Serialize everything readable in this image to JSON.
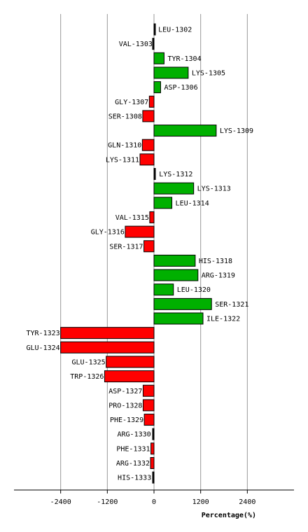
{
  "chart_data": {
    "type": "bar",
    "orientation": "horizontal",
    "xlabel": "Percentage(%)",
    "xlim": [
      -3600,
      3600
    ],
    "xticks": [
      -2400,
      -1200,
      0,
      1200,
      2400
    ],
    "grid": true,
    "colors": {
      "positive": "#00b000",
      "negative": "#ff0000",
      "small": "#000000",
      "grid": "#999999"
    },
    "categories": [
      "LEU-1302",
      "VAL-1303",
      "TYR-1304",
      "LYS-1305",
      "ASP-1306",
      "GLY-1307",
      "SER-1308",
      "LYS-1309",
      "GLN-1310",
      "LYS-1311",
      "LYS-1312",
      "LYS-1313",
      "LEU-1314",
      "VAL-1315",
      "GLY-1316",
      "SER-1317",
      "HIS-1318",
      "ARG-1319",
      "LEU-1320",
      "SER-1321",
      "ILE-1322",
      "TYR-1323",
      "GLU-1324",
      "GLU-1325",
      "TRP-1326",
      "ASP-1327",
      "PRO-1328",
      "PHE-1329",
      "ARG-1330",
      "PHE-1331",
      "ARG-1332",
      "HIS-1333"
    ],
    "values": [
      20,
      -20,
      260,
      880,
      170,
      -120,
      -290,
      1600,
      -300,
      -360,
      40,
      1020,
      460,
      -110,
      -740,
      -260,
      1060,
      1130,
      500,
      1480,
      1260,
      -2400,
      -2400,
      -1230,
      -1270,
      -280,
      -280,
      -250,
      -60,
      -80,
      -90,
      -50
    ]
  }
}
